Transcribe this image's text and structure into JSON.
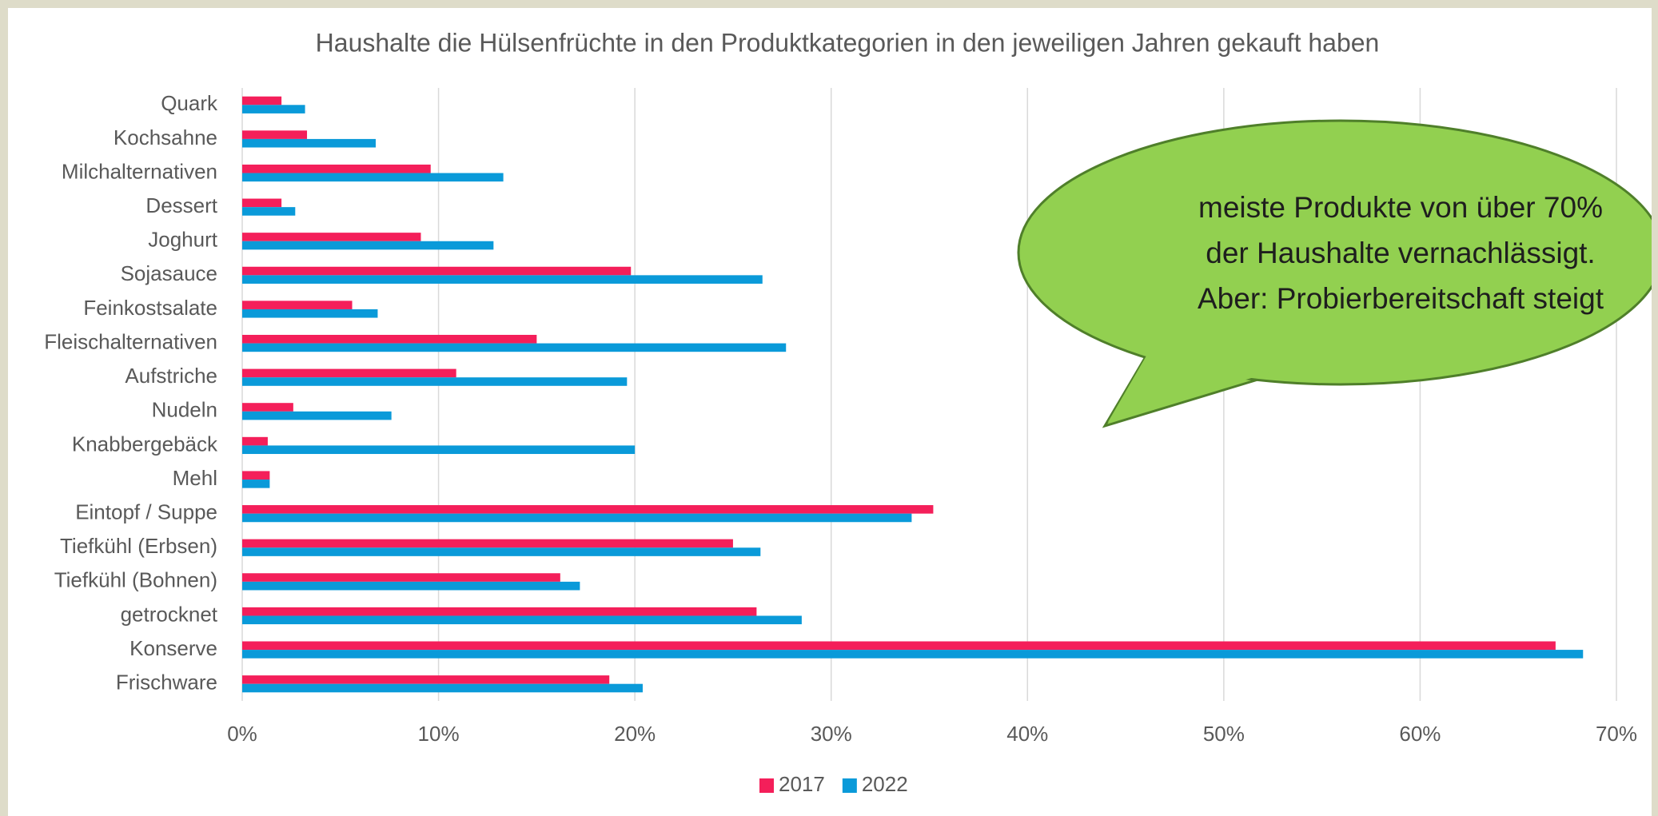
{
  "chart_data": {
    "type": "bar",
    "orientation": "horizontal",
    "title": "Haushalte die Hülsenfrüchte in den Produktkategorien in den jeweiligen Jahren gekauft haben",
    "categories": [
      "Quark",
      "Kochsahne",
      "Milchalternativen",
      "Dessert",
      "Joghurt",
      "Sojasauce",
      "Feinkostsalate",
      "Fleischalternativen",
      "Aufstriche",
      "Nudeln",
      "Knabbergebäck",
      "Mehl",
      "Eintopf / Suppe",
      "Tiefkühl (Erbsen)",
      "Tiefkühl (Bohnen)",
      "getrocknet",
      "Konserve",
      "Frischware"
    ],
    "series": [
      {
        "name": "2017",
        "color": "#f41f5a",
        "values": [
          2.0,
          3.3,
          9.6,
          2.0,
          9.1,
          19.8,
          5.6,
          15.0,
          10.9,
          2.6,
          1.3,
          1.4,
          35.2,
          25.0,
          16.2,
          26.2,
          66.9,
          18.7
        ]
      },
      {
        "name": "2022",
        "color": "#0a9ad9",
        "values": [
          3.2,
          6.8,
          13.3,
          2.7,
          12.8,
          26.5,
          6.9,
          27.7,
          19.6,
          7.6,
          20.0,
          1.4,
          34.1,
          26.4,
          17.2,
          28.5,
          68.3,
          20.4
        ]
      }
    ],
    "xlim": [
      0,
      70
    ],
    "xticks": [
      {
        "value": 0,
        "label": "0%"
      },
      {
        "value": 10,
        "label": "10%"
      },
      {
        "value": 20,
        "label": "20%"
      },
      {
        "value": 30,
        "label": "30%"
      },
      {
        "value": 40,
        "label": "40%"
      },
      {
        "value": 50,
        "label": "50%"
      },
      {
        "value": 60,
        "label": "60%"
      },
      {
        "value": 70,
        "label": "70%"
      }
    ],
    "grid": true,
    "legend": "bottom",
    "annotation": [
      "meiste Produkte von über 70%",
      "der Haushalte vernachlässigt.",
      "Aber: Probierbereitschaft steigt"
    ]
  }
}
